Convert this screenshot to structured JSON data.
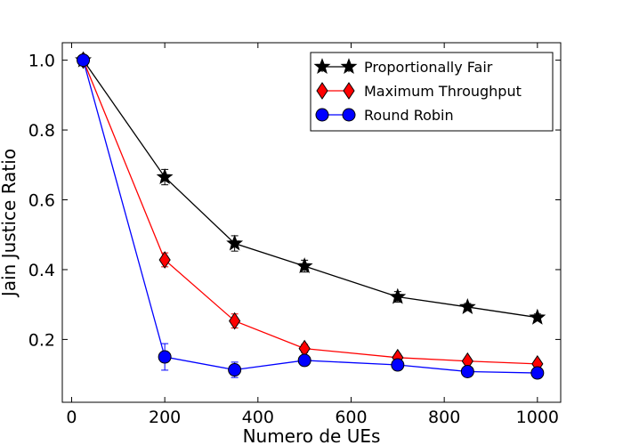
{
  "chart_data": {
    "type": "line",
    "title": "",
    "xlabel": "Numero de UEs",
    "ylabel": "Jain Justice Ratio",
    "xlim": [
      -20,
      1050
    ],
    "ylim": [
      0.02,
      1.05
    ],
    "xticks": [
      0,
      200,
      400,
      600,
      800,
      1000
    ],
    "xtick_labels": [
      "0",
      "200",
      "400",
      "600",
      "800",
      "1000"
    ],
    "yticks": [
      0.2,
      0.4,
      0.6,
      0.8,
      1.0
    ],
    "ytick_labels": [
      "0.2",
      "0.4",
      "0.6",
      "0.8",
      "1.0"
    ],
    "grid": false,
    "legend_position": "top-right",
    "x": [
      25,
      200,
      350,
      500,
      700,
      850,
      1000
    ],
    "series": [
      {
        "name": "Proportionally Fair",
        "color": "#000000",
        "marker": "star",
        "values": [
          1.0,
          0.665,
          0.475,
          0.41,
          0.322,
          0.293,
          0.263
        ],
        "errors": [
          0.005,
          0.022,
          0.022,
          0.017,
          0.015,
          0.01,
          0.01
        ]
      },
      {
        "name": "Maximum Throughput",
        "color": "#ff0000",
        "marker": "diamond",
        "values": [
          1.0,
          0.428,
          0.253,
          0.174,
          0.148,
          0.138,
          0.13
        ],
        "errors": [
          0.005,
          0.02,
          0.02,
          0.012,
          0.01,
          0.008,
          0.008
        ]
      },
      {
        "name": "Round Robin",
        "color": "#0000ff",
        "marker": "circle",
        "values": [
          1.0,
          0.15,
          0.113,
          0.14,
          0.127,
          0.108,
          0.104
        ],
        "errors": [
          0.005,
          0.038,
          0.022,
          0.012,
          0.01,
          0.008,
          0.008
        ]
      }
    ]
  }
}
